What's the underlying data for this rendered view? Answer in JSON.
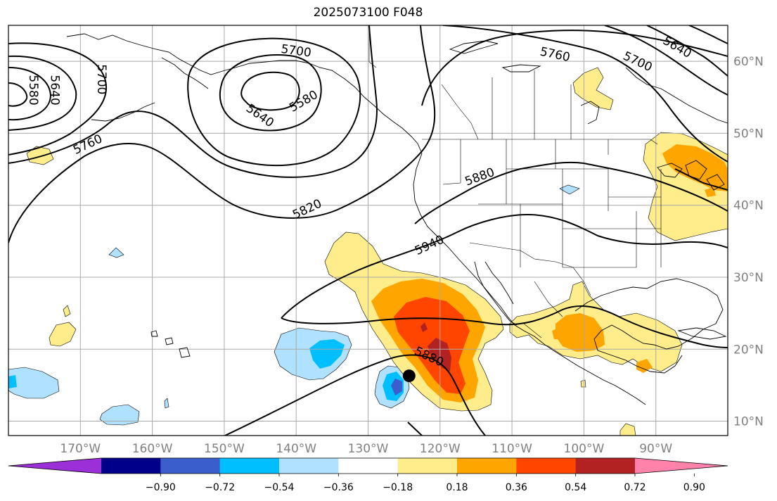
{
  "title": "2025073100 F048",
  "map": {
    "projection": "PlateCarree",
    "lon_range": [
      -180,
      -80
    ],
    "lat_range": [
      8,
      65
    ],
    "lon_ticks": [
      {
        "value": -170,
        "label": "170°W"
      },
      {
        "value": -160,
        "label": "160°W"
      },
      {
        "value": -150,
        "label": "150°W"
      },
      {
        "value": -140,
        "label": "140°W"
      },
      {
        "value": -130,
        "label": "130°W"
      },
      {
        "value": -120,
        "label": "120°W"
      },
      {
        "value": -110,
        "label": "110°W"
      },
      {
        "value": -100,
        "label": "100°W"
      },
      {
        "value": -90,
        "label": "90°W"
      }
    ],
    "lat_ticks": [
      {
        "value": 10,
        "label": "10°N"
      },
      {
        "value": 20,
        "label": "20°N"
      },
      {
        "value": 30,
        "label": "30°N"
      },
      {
        "value": 40,
        "label": "40°N"
      },
      {
        "value": 50,
        "label": "50°N"
      },
      {
        "value": 60,
        "label": "60°N"
      }
    ],
    "grid": true,
    "contour_labels": [
      {
        "text": "5700",
        "lon": -140,
        "lat": 61.5,
        "angle": 8
      },
      {
        "text": "5580",
        "lon": -139,
        "lat": 54.5,
        "angle": -30
      },
      {
        "text": "5640",
        "lon": -145,
        "lat": 52.5,
        "angle": 35
      },
      {
        "text": "5580",
        "lon": -176.5,
        "lat": 56,
        "angle": 90
      },
      {
        "text": "5640",
        "lon": -173.5,
        "lat": 56,
        "angle": 90
      },
      {
        "text": "5700",
        "lon": -167,
        "lat": 57.5,
        "angle": 90
      },
      {
        "text": "5760",
        "lon": -169,
        "lat": 48.5,
        "angle": -25
      },
      {
        "text": "5820",
        "lon": -138.5,
        "lat": 39.5,
        "angle": -25
      },
      {
        "text": "5880",
        "lon": -114.5,
        "lat": 44,
        "angle": -20
      },
      {
        "text": "5940",
        "lon": -121.5,
        "lat": 34.5,
        "angle": -25
      },
      {
        "text": "5880",
        "lon": -121.5,
        "lat": 19,
        "angle": 25
      },
      {
        "text": "5760",
        "lon": -104,
        "lat": 61,
        "angle": 12
      },
      {
        "text": "5700",
        "lon": -92.5,
        "lat": 60,
        "angle": 25
      },
      {
        "text": "5640",
        "lon": -87,
        "lat": 62,
        "angle": 30
      }
    ],
    "marker": {
      "lon": -124.3,
      "lat": 16.3,
      "color": "#000000"
    }
  },
  "colorbar": {
    "ticks": [
      "−0.90",
      "−0.72",
      "−0.54",
      "−0.36",
      "−0.18",
      "0.18",
      "0.36",
      "0.54",
      "0.72",
      "0.90"
    ],
    "colors": [
      "#9b30d9",
      "#00008b",
      "#3a5fcd",
      "#00bfff",
      "#b0e2ff",
      "#ffffff",
      "#ffec8b",
      "#ffa500",
      "#ff4500",
      "#b22222",
      "#ff82ab"
    ]
  }
}
